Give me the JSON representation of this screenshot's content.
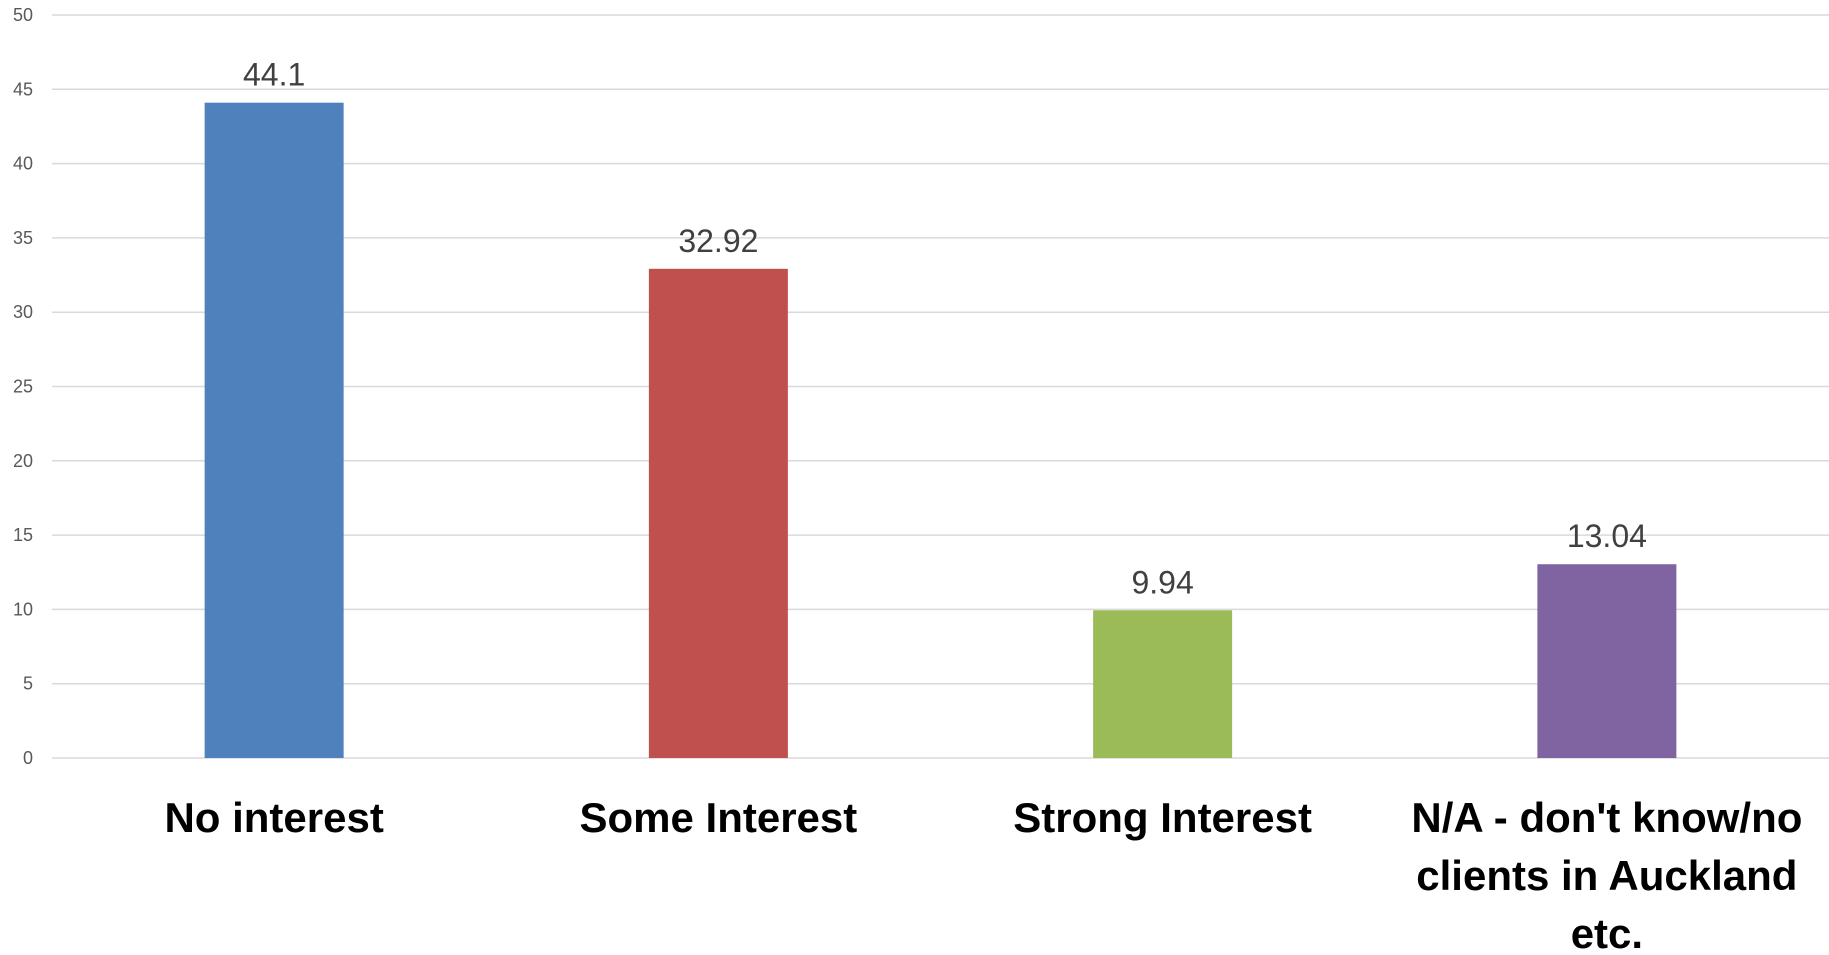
{
  "chart_data": {
    "type": "bar",
    "categories": [
      [
        "No interest"
      ],
      [
        "Some Interest"
      ],
      [
        "Strong Interest"
      ],
      [
        "N/A - don't know/no",
        "clients in Auckland",
        "etc."
      ]
    ],
    "values": [
      44.1,
      32.92,
      9.94,
      13.04
    ],
    "value_labels": [
      "44.1",
      "32.92",
      "9.94",
      "13.04"
    ],
    "colors": [
      "#4f81bd",
      "#c0504d",
      "#9bbb59",
      "#8064a2"
    ],
    "ylim": [
      0,
      50
    ],
    "yticks": [
      0,
      5,
      10,
      15,
      20,
      25,
      30,
      35,
      40,
      45,
      50
    ],
    "grid": true,
    "legend": "none",
    "title": "",
    "xlabel": "",
    "ylabel": ""
  }
}
